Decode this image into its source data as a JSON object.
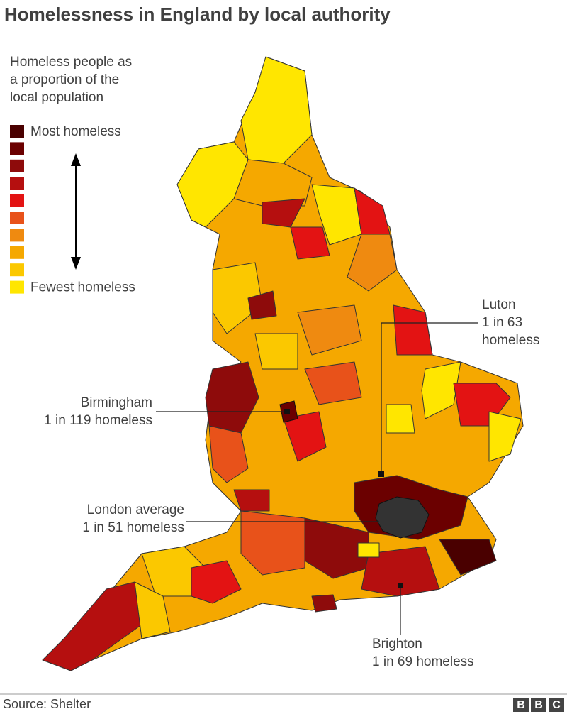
{
  "title": "Homelessness in England by local authority",
  "legend": {
    "title_lines": [
      "Homeless people as",
      "a proportion of the",
      "local population"
    ],
    "most_label": "Most homeless",
    "fewest_label": "Fewest homeless",
    "colors": [
      "#4a0000",
      "#6b0000",
      "#8e0b0b",
      "#b50f0f",
      "#e31313",
      "#e8521a",
      "#ef8a10",
      "#f5a800",
      "#fbc800",
      "#ffe600"
    ]
  },
  "annotations": [
    {
      "lines": [
        "Luton",
        "1 in 63",
        "homeless"
      ],
      "anchor": "start"
    },
    {
      "lines": [
        "Birmingham",
        "1 in 119 homeless"
      ],
      "anchor": "end"
    },
    {
      "lines": [
        "London average",
        "1 in 51 homeless"
      ],
      "anchor": "end"
    },
    {
      "lines": [
        "Brighton",
        "1 in 69 homeless"
      ],
      "anchor": "start"
    }
  ],
  "footer": {
    "source": "Source: Shelter",
    "logo": "BBC"
  }
}
